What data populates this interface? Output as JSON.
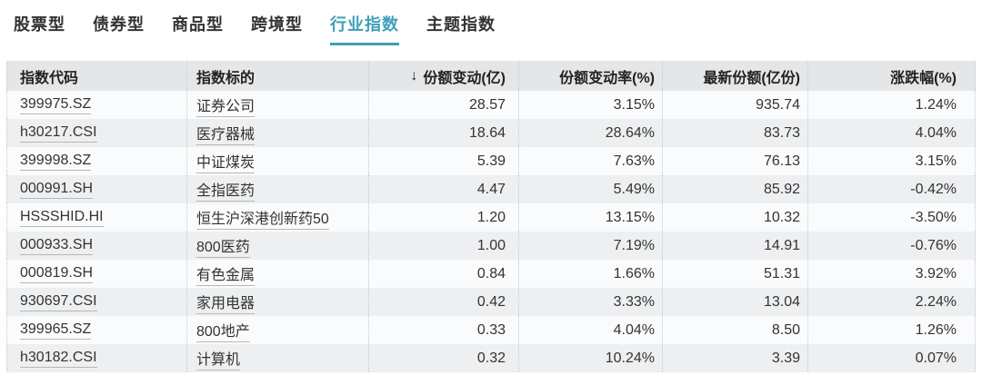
{
  "colors": {
    "accent": "#3E9FB8"
  },
  "tabs": [
    {
      "key": "stock-type",
      "label": "股票型",
      "active": false
    },
    {
      "key": "bond-type",
      "label": "债券型",
      "active": false
    },
    {
      "key": "commodity-type",
      "label": "商品型",
      "active": false
    },
    {
      "key": "cross-border-type",
      "label": "跨境型",
      "active": false
    },
    {
      "key": "industry-index",
      "label": "行业指数",
      "active": true
    },
    {
      "key": "theme-index",
      "label": "主题指数",
      "active": false
    }
  ],
  "table": {
    "sort_icon": "↓",
    "columns": [
      "指数代码",
      "指数标的",
      "份额变动(亿)",
      "份额变动率(%)",
      "最新份额(亿份)",
      "涨跌幅(%)"
    ],
    "rows": [
      {
        "code": "399975.SZ",
        "name": "证券公司",
        "share_change": "28.57",
        "share_change_rate": "3.15%",
        "latest_shares": "935.74",
        "pct_change": "1.24%"
      },
      {
        "code": "h30217.CSI",
        "name": "医疗器械",
        "share_change": "18.64",
        "share_change_rate": "28.64%",
        "latest_shares": "83.73",
        "pct_change": "4.04%"
      },
      {
        "code": "399998.SZ",
        "name": "中证煤炭",
        "share_change": "5.39",
        "share_change_rate": "7.63%",
        "latest_shares": "76.13",
        "pct_change": "3.15%"
      },
      {
        "code": "000991.SH",
        "name": "全指医药",
        "share_change": "4.47",
        "share_change_rate": "5.49%",
        "latest_shares": "85.92",
        "pct_change": "-0.42%"
      },
      {
        "code": "HSSSHID.HI",
        "name": "恒生沪深港创新药50",
        "share_change": "1.20",
        "share_change_rate": "13.15%",
        "latest_shares": "10.32",
        "pct_change": "-3.50%"
      },
      {
        "code": "000933.SH",
        "name": "800医药",
        "share_change": "1.00",
        "share_change_rate": "7.19%",
        "latest_shares": "14.91",
        "pct_change": "-0.76%"
      },
      {
        "code": "000819.SH",
        "name": "有色金属",
        "share_change": "0.84",
        "share_change_rate": "1.66%",
        "latest_shares": "51.31",
        "pct_change": "3.92%"
      },
      {
        "code": "930697.CSI",
        "name": "家用电器",
        "share_change": "0.42",
        "share_change_rate": "3.33%",
        "latest_shares": "13.04",
        "pct_change": "2.24%"
      },
      {
        "code": "399965.SZ",
        "name": "800地产",
        "share_change": "0.33",
        "share_change_rate": "4.04%",
        "latest_shares": "8.50",
        "pct_change": "1.26%"
      },
      {
        "code": "h30182.CSI",
        "name": "计算机",
        "share_change": "0.32",
        "share_change_rate": "10.24%",
        "latest_shares": "3.39",
        "pct_change": "0.07%"
      }
    ]
  }
}
